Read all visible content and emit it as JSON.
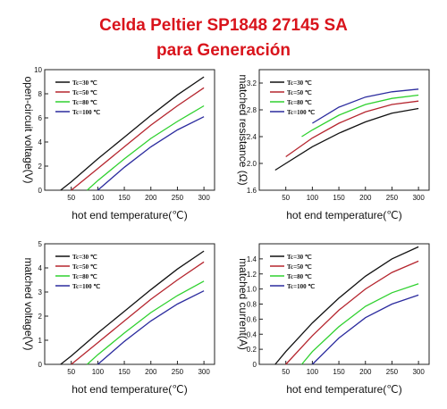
{
  "header": {
    "line1": "Celda Peltier SP1848 27145 SA",
    "line2": "para Generación"
  },
  "colors": {
    "title": "#d9141c",
    "series": [
      "#111111",
      "#b5252e",
      "#2fd12f",
      "#2b2b9e"
    ]
  },
  "chart_data": [
    {
      "type": "line",
      "title": "",
      "xlabel": "hot end temperature(℃)",
      "ylabel": "open-circuit voltage(V)",
      "xlim": [
        0,
        320
      ],
      "ylim": [
        0,
        10
      ],
      "xticks": [
        "50",
        "100",
        "150",
        "200",
        "250",
        "300"
      ],
      "yticks": [
        "0",
        "2",
        "4",
        "6",
        "8",
        "10"
      ],
      "legend": "top-left",
      "series": [
        {
          "name": "Tc=30 ℃",
          "x": [
            30,
            50,
            100,
            150,
            200,
            250,
            300
          ],
          "y": [
            0,
            0.7,
            2.6,
            4.4,
            6.2,
            7.9,
            9.4
          ]
        },
        {
          "name": "Tc=50 ℃",
          "x": [
            50,
            100,
            150,
            200,
            250,
            300
          ],
          "y": [
            0,
            1.8,
            3.6,
            5.4,
            7.0,
            8.5
          ]
        },
        {
          "name": "Tc=80 ℃",
          "x": [
            80,
            100,
            150,
            200,
            250,
            300
          ],
          "y": [
            0,
            0.8,
            2.6,
            4.3,
            5.7,
            7.0
          ]
        },
        {
          "name": "Tc=100 ℃",
          "x": [
            100,
            150,
            200,
            250,
            300
          ],
          "y": [
            0,
            1.9,
            3.6,
            5.0,
            6.1
          ]
        }
      ]
    },
    {
      "type": "line",
      "title": "",
      "xlabel": "hot end temperature(℃)",
      "ylabel": "matched resistance (Ω)",
      "xlim": [
        0,
        320
      ],
      "ylim": [
        1.6,
        3.4
      ],
      "xticks": [
        "50",
        "100",
        "150",
        "200",
        "250",
        "300"
      ],
      "yticks": [
        "1.6",
        "2.0",
        "2.4",
        "2.8",
        "3.2"
      ],
      "legend": "top-left",
      "series": [
        {
          "name": "Tc=30 ℃",
          "x": [
            30,
            50,
            100,
            150,
            200,
            250,
            300
          ],
          "y": [
            1.9,
            2.0,
            2.25,
            2.45,
            2.62,
            2.75,
            2.82
          ]
        },
        {
          "name": "Tc=50 ℃",
          "x": [
            50,
            100,
            150,
            200,
            250,
            300
          ],
          "y": [
            2.1,
            2.38,
            2.6,
            2.77,
            2.88,
            2.93
          ]
        },
        {
          "name": "Tc=80 ℃",
          "x": [
            80,
            100,
            150,
            200,
            250,
            300
          ],
          "y": [
            2.4,
            2.5,
            2.72,
            2.88,
            2.97,
            3.02
          ]
        },
        {
          "name": "Tc=100 ℃",
          "x": [
            100,
            150,
            200,
            250,
            300
          ],
          "y": [
            2.6,
            2.84,
            2.99,
            3.07,
            3.11
          ]
        }
      ]
    },
    {
      "type": "line",
      "title": "",
      "xlabel": "hot end temperature(℃)",
      "ylabel": "matched voltage(V)",
      "xlim": [
        0,
        320
      ],
      "ylim": [
        0,
        5
      ],
      "xticks": [
        "50",
        "100",
        "150",
        "200",
        "250",
        "300"
      ],
      "yticks": [
        "0",
        "1",
        "2",
        "3",
        "4",
        "5"
      ],
      "legend": "top-left",
      "series": [
        {
          "name": "Tc=30 ℃",
          "x": [
            30,
            50,
            100,
            150,
            200,
            250,
            300
          ],
          "y": [
            0,
            0.35,
            1.3,
            2.2,
            3.1,
            3.95,
            4.7
          ]
        },
        {
          "name": "Tc=50 ℃",
          "x": [
            50,
            100,
            150,
            200,
            250,
            300
          ],
          "y": [
            0,
            0.9,
            1.8,
            2.7,
            3.5,
            4.25
          ]
        },
        {
          "name": "Tc=80 ℃",
          "x": [
            80,
            100,
            150,
            200,
            250,
            300
          ],
          "y": [
            0,
            0.4,
            1.3,
            2.15,
            2.85,
            3.45
          ]
        },
        {
          "name": "Tc=100 ℃",
          "x": [
            100,
            150,
            200,
            250,
            300
          ],
          "y": [
            0,
            0.95,
            1.8,
            2.5,
            3.05
          ]
        }
      ]
    },
    {
      "type": "line",
      "title": "",
      "xlabel": "hot end temperature(℃)",
      "ylabel": "matched current(A)",
      "xlim": [
        0,
        320
      ],
      "ylim": [
        0,
        1.6
      ],
      "xticks": [
        "50",
        "100",
        "150",
        "200",
        "250",
        "300"
      ],
      "yticks": [
        "0",
        "0.2",
        "0.4",
        "0.6",
        "0.8",
        "1.0",
        "1.2",
        "1.4"
      ],
      "legend": "top-left",
      "series": [
        {
          "name": "Tc=30 ℃",
          "x": [
            30,
            50,
            100,
            150,
            200,
            250,
            300
          ],
          "y": [
            0,
            0.17,
            0.55,
            0.88,
            1.17,
            1.4,
            1.56
          ]
        },
        {
          "name": "Tc=50 ℃",
          "x": [
            50,
            100,
            150,
            200,
            250,
            300
          ],
          "y": [
            0,
            0.38,
            0.72,
            1.0,
            1.22,
            1.37
          ]
        },
        {
          "name": "Tc=80 ℃",
          "x": [
            80,
            100,
            150,
            200,
            250,
            300
          ],
          "y": [
            0,
            0.17,
            0.5,
            0.77,
            0.95,
            1.07
          ]
        },
        {
          "name": "Tc=100 ℃",
          "x": [
            100,
            150,
            200,
            250,
            300
          ],
          "y": [
            0,
            0.35,
            0.62,
            0.8,
            0.92
          ]
        }
      ]
    }
  ]
}
